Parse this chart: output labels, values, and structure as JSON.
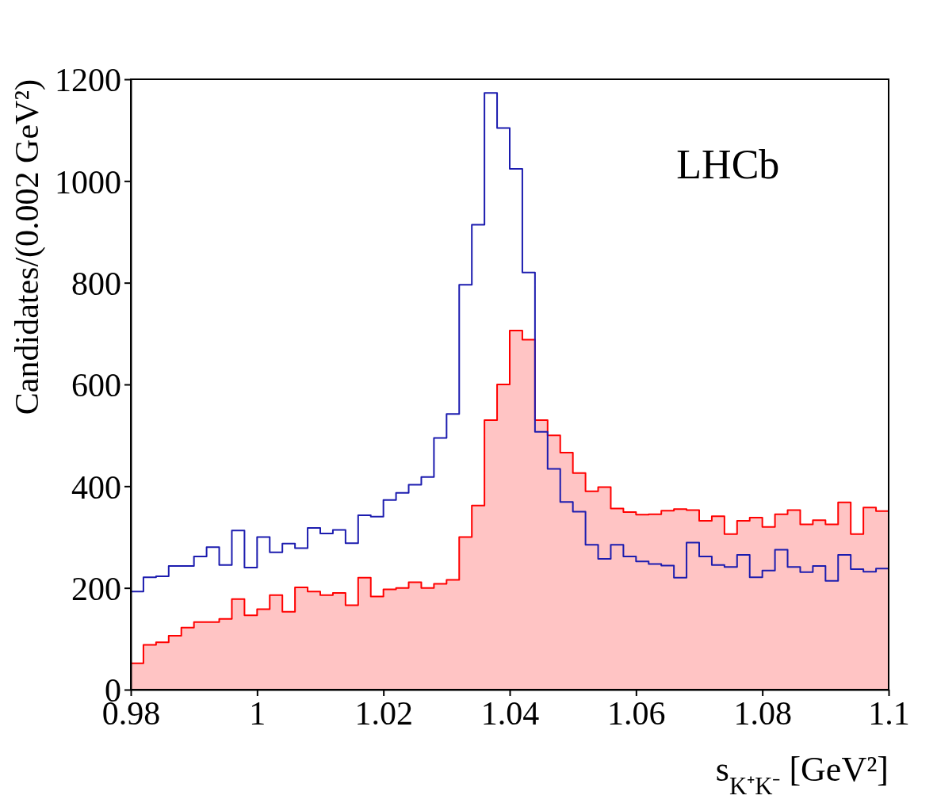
{
  "chart_data": {
    "type": "step",
    "xlabel": "s$_{K⁺K⁻}$ [GeV²]",
    "ylabel": "Candidates/(0.002 GeV²)",
    "annotations": [
      "LHCb"
    ],
    "x": [
      0.98,
      0.982,
      0.984,
      0.986,
      0.988,
      0.99,
      0.992,
      0.994,
      0.996,
      0.998,
      1.0,
      1.002,
      1.004,
      1.006,
      1.008,
      1.01,
      1.012,
      1.014,
      1.016,
      1.018,
      1.02,
      1.022,
      1.024,
      1.026,
      1.028,
      1.03,
      1.032,
      1.034,
      1.036,
      1.038,
      1.04,
      1.042,
      1.044,
      1.046,
      1.048,
      1.05,
      1.052,
      1.054,
      1.056,
      1.058,
      1.06,
      1.062,
      1.064,
      1.066,
      1.068,
      1.07,
      1.072,
      1.074,
      1.076,
      1.078,
      1.08,
      1.082,
      1.084,
      1.086,
      1.088,
      1.09,
      1.092,
      1.094,
      1.096,
      1.098,
      1.1
    ],
    "series": [
      {
        "type": "area",
        "color": "#ff0000",
        "values": [
          52,
          88,
          93,
          106,
          122,
          133,
          133,
          139,
          178,
          146,
          158,
          186,
          153,
          201,
          193,
          186,
          190,
          166,
          220,
          183,
          197,
          200,
          211,
          200,
          208,
          216,
          300,
          362,
          530,
          600,
          706,
          688,
          530,
          500,
          466,
          426,
          390,
          398,
          356,
          349,
          344,
          345,
          352,
          355,
          353,
          332,
          341,
          306,
          332,
          338,
          320,
          345,
          353,
          325,
          333,
          325,
          368,
          306,
          358,
          351,
          351
        ]
      },
      {
        "color": "#1c1caf",
        "values": [
          193,
          221,
          223,
          243,
          243,
          262,
          280,
          245,
          313,
          240,
          300,
          270,
          287,
          278,
          318,
          307,
          314,
          288,
          343,
          340,
          373,
          387,
          403,
          418,
          495,
          542,
          796,
          914,
          1173,
          1104,
          1024,
          820,
          507,
          434,
          369,
          350,
          285,
          257,
          285,
          262,
          252,
          247,
          244,
          220,
          289,
          262,
          245,
          241,
          265,
          221,
          234,
          275,
          241,
          231,
          243,
          214,
          265,
          237,
          232,
          238,
          238
        ]
      }
    ],
    "xlim": [
      0.98,
      1.1
    ],
    "ylim": [
      0,
      1200
    ],
    "xticks": [
      0.98,
      1,
      1.02,
      1.04,
      1.06,
      1.08,
      1.1
    ],
    "yticks": [
      0,
      200,
      400,
      600,
      800,
      1000,
      1200
    ],
    "grid": false
  }
}
